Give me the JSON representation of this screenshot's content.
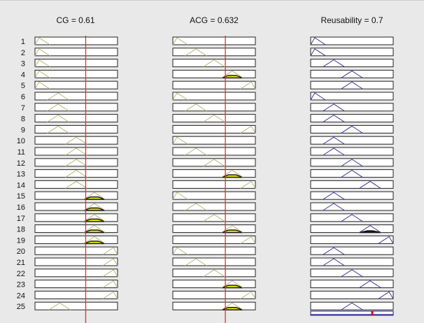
{
  "window": {
    "background": "#e9e9e9"
  },
  "columns": [
    {
      "id": "cg",
      "title": "CG = 0.61",
      "line_color": "#b8b87a",
      "fill_color": "#e8e600",
      "cursor_color": "#e03030",
      "cursor_value": 0.61
    },
    {
      "id": "acg",
      "title": "ACG = 0.632",
      "line_color": "#b8b87a",
      "fill_color": "#e8e600",
      "cursor_color": "#e03030",
      "cursor_value": 0.632
    },
    {
      "id": "reusability",
      "title": "Reusability = 0.7",
      "line_color": "#3a3aa0",
      "fill_color": "#1a1a1a",
      "cursor_color": "#e00000",
      "cursor_value": 0.7
    }
  ],
  "rule_numbers": [
    "1",
    "2",
    "3",
    "4",
    "5",
    "6",
    "7",
    "8",
    "9",
    "10",
    "11",
    "12",
    "13",
    "14",
    "15",
    "16",
    "17",
    "18",
    "19",
    "20",
    "21",
    "22",
    "23",
    "24",
    "25"
  ],
  "membership_peaks": {
    "cg": [
      0.05,
      0.05,
      0.05,
      0.05,
      0.05,
      0.28,
      0.28,
      0.28,
      0.28,
      0.5,
      0.5,
      0.5,
      0.5,
      0.5,
      0.72,
      0.72,
      0.72,
      0.72,
      0.72,
      0.95,
      0.95,
      0.95,
      0.95,
      0.95,
      0.3
    ],
    "acg": [
      0.05,
      0.28,
      0.5,
      0.72,
      0.95,
      0.05,
      0.28,
      0.5,
      0.95,
      0.05,
      0.28,
      0.5,
      0.72,
      0.95,
      0.05,
      0.28,
      0.5,
      0.72,
      0.95,
      0.05,
      0.28,
      0.5,
      0.72,
      0.95,
      0.72
    ],
    "reusability": [
      0.05,
      0.05,
      0.28,
      0.5,
      0.5,
      0.05,
      0.28,
      0.28,
      0.5,
      0.28,
      0.28,
      0.5,
      0.5,
      0.72,
      0.28,
      0.28,
      0.5,
      0.72,
      0.95,
      0.28,
      0.28,
      0.5,
      0.72,
      0.95,
      0.5
    ]
  },
  "rule_activation": {
    "cg": [
      0,
      0,
      0,
      0,
      0,
      0,
      0,
      0,
      0,
      0,
      0,
      0,
      0,
      0,
      0.35,
      0.35,
      0.35,
      0.35,
      0.35,
      0,
      0,
      0,
      0,
      0,
      0
    ],
    "acg": [
      0,
      0,
      0,
      0.35,
      0,
      0,
      0,
      0,
      0,
      0,
      0,
      0,
      0.35,
      0,
      0,
      0,
      0,
      0.35,
      0,
      0,
      0,
      0,
      0.35,
      0,
      0.35
    ],
    "reusability": [
      0,
      0,
      0,
      0,
      0,
      0,
      0,
      0,
      0,
      0,
      0,
      0,
      0,
      0,
      0,
      0,
      0,
      0.25,
      0,
      0,
      0,
      0,
      0,
      0,
      0
    ]
  },
  "aggregate_output_color": "#3a3aa0"
}
